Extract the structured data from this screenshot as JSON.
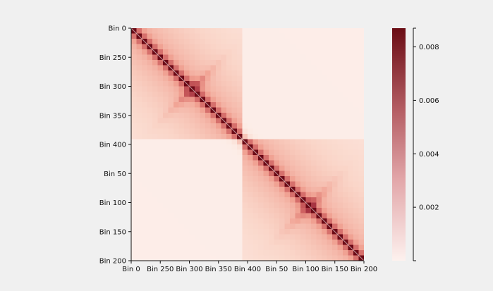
{
  "chart_data": {
    "type": "heatmap",
    "title": "",
    "xlabel": "",
    "ylabel": "",
    "segments": [
      {
        "name": "",
        "tick_labels": [
          "Bin 0",
          "Bin 250",
          "Bin 300",
          "Bin 350",
          "Bin 400"
        ]
      },
      {
        "name": "",
        "tick_labels": [
          "Bin 50",
          "Bin 100",
          "Bin 150",
          "Bin 200"
        ]
      }
    ],
    "x_tick_labels": [
      "Bin 0",
      "Bin 250",
      "Bin 300",
      "Bin 350",
      "Bin 400",
      "Bin 50",
      "Bin 100",
      "Bin 150",
      "Bin 200"
    ],
    "y_tick_labels": [
      "Bin 0",
      "Bin 250",
      "Bin 300",
      "Bin 350",
      "Bin 400",
      "Bin 50",
      "Bin 100",
      "Bin 150",
      "Bin 200"
    ],
    "features": {
      "diagonal": "strong contact along main diagonal",
      "domains": [
        {
          "segment": 1,
          "range_fraction": [
            0.0,
            0.48
          ],
          "intensity": "moderate"
        },
        {
          "segment": 2,
          "range_fraction": [
            0.48,
            1.0
          ],
          "intensity": "moderate"
        }
      ],
      "inter_segment_intensity": "low"
    },
    "colorbar": {
      "min": 0.0,
      "max": 0.0087,
      "ticks": [
        0.002,
        0.004,
        0.006,
        0.008
      ],
      "tick_labels": [
        "0.002",
        "0.004",
        "0.006",
        "0.008"
      ],
      "colors": [
        "#fff5f0",
        "#fcbba1",
        "#fb6a4a",
        "#cb181d",
        "#67000d"
      ]
    },
    "grid": false,
    "legend": "colorbar-right"
  }
}
